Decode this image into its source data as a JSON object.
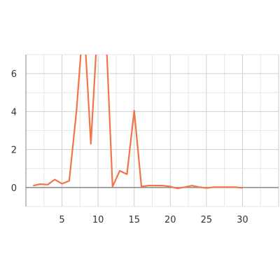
{
  "chart_data": {
    "type": "line",
    "title": "",
    "xlabel": "",
    "ylabel": "",
    "xlim": [
      0,
      35
    ],
    "ylim": [
      -1,
      7
    ],
    "x_ticks": [
      5,
      10,
      15,
      20,
      25,
      30
    ],
    "y_ticks": [
      0,
      2,
      4,
      6
    ],
    "grid": true,
    "legend": "none",
    "series": [
      {
        "color": "#f4744a",
        "x": [
          1,
          2,
          3,
          4,
          5,
          6,
          7,
          8,
          9,
          10,
          11,
          12,
          13,
          14,
          15,
          16,
          17,
          18,
          19,
          20,
          21,
          22,
          23,
          24,
          25,
          26,
          27,
          28,
          29,
          30
        ],
        "y": [
          0.1,
          0.18,
          0.15,
          0.42,
          0.2,
          0.35,
          4.0,
          9.0,
          2.3,
          9.0,
          9.0,
          0.05,
          0.88,
          0.7,
          4.05,
          0.05,
          0.1,
          0.1,
          0.1,
          0.05,
          -0.05,
          0.02,
          0.1,
          0.02,
          -0.03,
          0.02,
          0.02,
          0.02,
          0.02,
          -0.02
        ]
      }
    ]
  }
}
